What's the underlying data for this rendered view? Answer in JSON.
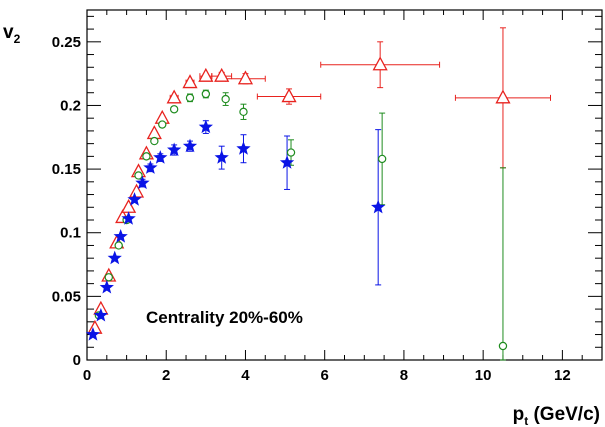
{
  "chart_data": {
    "type": "scatter",
    "title": "",
    "xlabel": {
      "main": "p",
      "sub": "t",
      "rest": " (GeV/c)"
    },
    "ylabel": {
      "main": "v",
      "sub": "2"
    },
    "xlim": [
      0,
      13
    ],
    "ylim": [
      0,
      0.275
    ],
    "xticks": [
      0,
      2,
      4,
      6,
      8,
      10,
      12
    ],
    "xtick_labels": [
      "0",
      "2",
      "4",
      "6",
      "8",
      "10",
      "12"
    ],
    "yticks": [
      0,
      0.05,
      0.1,
      0.15,
      0.2,
      0.25
    ],
    "ytick_labels": [
      "0",
      "0.05",
      "0.1",
      "0.15",
      "0.2",
      "0.25"
    ],
    "grid": false,
    "annotation": "Centrality 20%-60%",
    "series": [
      {
        "marker": "open-triangle",
        "color": "#e8231f",
        "points": [
          {
            "x": 0.2,
            "y": 0.025,
            "xerr": 0,
            "yerr": 0.001
          },
          {
            "x": 0.35,
            "y": 0.04,
            "xerr": 0,
            "yerr": 0.001
          },
          {
            "x": 0.55,
            "y": 0.066,
            "xerr": 0,
            "yerr": 0.001
          },
          {
            "x": 0.75,
            "y": 0.092,
            "xerr": 0,
            "yerr": 0.001
          },
          {
            "x": 0.9,
            "y": 0.112,
            "xerr": 0,
            "yerr": 0.001
          },
          {
            "x": 1.05,
            "y": 0.12,
            "xerr": 0,
            "yerr": 0.001
          },
          {
            "x": 1.25,
            "y": 0.132,
            "xerr": 0,
            "yerr": 0.001
          },
          {
            "x": 1.3,
            "y": 0.148,
            "xerr": 0,
            "yerr": 0.001
          },
          {
            "x": 1.5,
            "y": 0.162,
            "xerr": 0,
            "yerr": 0.001
          },
          {
            "x": 1.7,
            "y": 0.178,
            "xerr": 0,
            "yerr": 0.001
          },
          {
            "x": 1.9,
            "y": 0.19,
            "xerr": 0,
            "yerr": 0.001
          },
          {
            "x": 2.2,
            "y": 0.206,
            "xerr": 0.1,
            "yerr": 0.002
          },
          {
            "x": 2.6,
            "y": 0.218,
            "xerr": 0.1,
            "yerr": 0.002
          },
          {
            "x": 3.0,
            "y": 0.223,
            "xerr": 0.15,
            "yerr": 0.002
          },
          {
            "x": 3.4,
            "y": 0.223,
            "xerr": 0.25,
            "yerr": 0.003
          },
          {
            "x": 4.0,
            "y": 0.221,
            "xerr": 0.5,
            "yerr": 0.004
          },
          {
            "x": 5.1,
            "y": 0.207,
            "xerr": 0.8,
            "yerr": 0.006
          },
          {
            "x": 7.4,
            "y": 0.232,
            "xerr": 1.5,
            "yerr": 0.018
          },
          {
            "x": 10.5,
            "y": 0.206,
            "xerr": 1.2,
            "yerr": 0.055
          }
        ]
      },
      {
        "marker": "open-circle",
        "color": "#1f8c1f",
        "points": [
          {
            "x": 0.3,
            "y": 0.035,
            "yerr": 0.001
          },
          {
            "x": 0.55,
            "y": 0.065,
            "yerr": 0.001
          },
          {
            "x": 0.8,
            "y": 0.09,
            "yerr": 0.001
          },
          {
            "x": 1.0,
            "y": 0.11,
            "yerr": 0.001
          },
          {
            "x": 1.3,
            "y": 0.145,
            "yerr": 0.001
          },
          {
            "x": 1.5,
            "y": 0.16,
            "yerr": 0.002
          },
          {
            "x": 1.7,
            "y": 0.172,
            "yerr": 0.002
          },
          {
            "x": 1.9,
            "y": 0.185,
            "yerr": 0.002
          },
          {
            "x": 2.2,
            "y": 0.197,
            "yerr": 0.002
          },
          {
            "x": 2.6,
            "y": 0.206,
            "yerr": 0.003
          },
          {
            "x": 3.0,
            "y": 0.209,
            "yerr": 0.003
          },
          {
            "x": 3.5,
            "y": 0.205,
            "yerr": 0.005
          },
          {
            "x": 3.95,
            "y": 0.195,
            "yerr": 0.006
          },
          {
            "x": 5.15,
            "y": 0.163,
            "yerr": 0.01
          },
          {
            "x": 7.45,
            "y": 0.158,
            "yerr": 0.036
          },
          {
            "x": 10.5,
            "y": 0.011,
            "yerr_low": 0.011,
            "yerr_high": 0.14
          }
        ]
      },
      {
        "marker": "filled-star",
        "color": "#0a14e6",
        "points": [
          {
            "x": 0.15,
            "y": 0.02,
            "yerr": 0.002
          },
          {
            "x": 0.35,
            "y": 0.035,
            "yerr": 0.002
          },
          {
            "x": 0.5,
            "y": 0.057,
            "yerr": 0.002
          },
          {
            "x": 0.7,
            "y": 0.08,
            "yerr": 0.002
          },
          {
            "x": 0.85,
            "y": 0.097,
            "yerr": 0.002
          },
          {
            "x": 1.05,
            "y": 0.111,
            "yerr": 0.002
          },
          {
            "x": 1.2,
            "y": 0.126,
            "yerr": 0.002
          },
          {
            "x": 1.4,
            "y": 0.139,
            "yerr": 0.003
          },
          {
            "x": 1.6,
            "y": 0.151,
            "yerr": 0.003
          },
          {
            "x": 1.85,
            "y": 0.159,
            "yerr": 0.003
          },
          {
            "x": 2.2,
            "y": 0.165,
            "yerr": 0.004
          },
          {
            "x": 2.6,
            "y": 0.168,
            "yerr": 0.004
          },
          {
            "x": 3.0,
            "y": 0.183,
            "yerr": 0.005
          },
          {
            "x": 3.4,
            "y": 0.159,
            "yerr": 0.009
          },
          {
            "x": 3.95,
            "y": 0.166,
            "yerr": 0.011
          },
          {
            "x": 5.05,
            "y": 0.155,
            "yerr": 0.021
          },
          {
            "x": 7.35,
            "y": 0.12,
            "yerr": 0.061
          }
        ]
      }
    ]
  }
}
